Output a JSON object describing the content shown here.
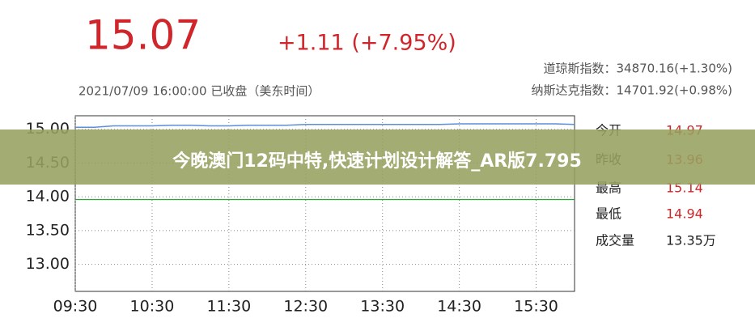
{
  "header": {
    "price": "15.07",
    "change": "+1.11 (+7.95%)",
    "time": "2021/07/09 16:00:00 已收盘（美东时间）",
    "indices": [
      "道琼斯指数：34870.16(+1.30%)",
      "纳斯达克指数：14701.92(+0.98%)"
    ]
  },
  "stats": [
    {
      "label": "今开",
      "value": 14.97
    },
    {
      "label": "昨收",
      "value": 13.96
    },
    {
      "label": "最高",
      "value": 15.14
    },
    {
      "label": "最低",
      "value": 14.94
    },
    {
      "label": "成交量",
      "value": "13.35万"
    }
  ],
  "banner": "今晚澳门12码中特,快速计划设计解答_AR版7.795",
  "chart_data": {
    "type": "line",
    "x": [
      "09:30",
      "09:45",
      "10:00",
      "10:15",
      "10:30",
      "10:45",
      "11:00",
      "11:15",
      "11:30",
      "11:45",
      "12:00",
      "12:15",
      "12:30",
      "12:45",
      "13:00",
      "13:15",
      "13:30",
      "13:45",
      "14:00",
      "14:15",
      "14:30",
      "14:45",
      "15:00",
      "15:15",
      "15:30",
      "15:45",
      "16:00"
    ],
    "series": [
      {
        "color": "#5b8fd6",
        "values": [
          15.03,
          15.03,
          15.05,
          15.05,
          15.05,
          15.06,
          15.06,
          15.05,
          15.05,
          15.06,
          15.06,
          15.06,
          15.07,
          15.07,
          15.07,
          15.07,
          15.07,
          15.07,
          15.07,
          15.07,
          15.08,
          15.08,
          15.08,
          15.08,
          15.08,
          15.08,
          15.07
        ]
      }
    ],
    "xlim": [
      "09:30",
      "16:00"
    ],
    "xticks": [
      "09:30",
      "10:30",
      "11:30",
      "12:30",
      "13:30",
      "14:30",
      "15:30"
    ],
    "ylim": [
      12.6,
      15.2
    ],
    "yticks": [
      {
        "value": 13,
        "label": "13.00"
      },
      {
        "value": 13.5,
        "label": "13.50"
      },
      {
        "value": 14,
        "label": "14.00"
      },
      {
        "value": 14.5,
        "label": "14.50"
      },
      {
        "value": 15,
        "label": "15.00"
      }
    ],
    "grid": true,
    "reference_color": "#2e9e3e"
  }
}
